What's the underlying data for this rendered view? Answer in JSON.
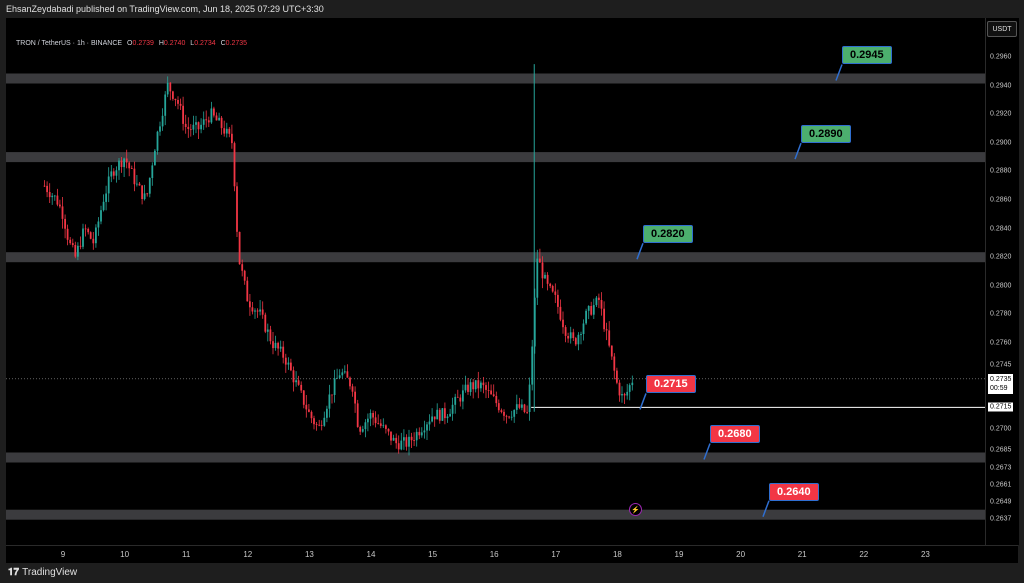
{
  "header": {
    "publish_line": "EhsanZeydabadi published on TradingView.com, Jun 18, 2025 07:29 UTC+3:30"
  },
  "symbol": {
    "name": "TRON / TetherUS · 1h · BINANCE",
    "open_label": "O",
    "open": "0.2739",
    "high_label": "H",
    "high": "0.2740",
    "low_label": "L",
    "low": "0.2734",
    "close_label": "C",
    "close": "0.2735"
  },
  "currency_button": "USDT",
  "last_price": {
    "value": "0.2735",
    "countdown": "00:59"
  },
  "footer": {
    "brand": "TradingView"
  },
  "colors": {
    "up": "#26a69a",
    "down": "#f23645",
    "zone": "#3b3b3e",
    "callout_green": "#4caf6e",
    "callout_red": "#f23645",
    "callout_border": "#2f6fd1"
  },
  "chart_data": {
    "type": "candlestick",
    "price_axis_ticks": [
      0.296,
      0.294,
      0.292,
      0.29,
      0.288,
      0.286,
      0.284,
      0.282,
      0.28,
      0.278,
      0.276,
      0.2745,
      0.2735,
      0.2715,
      0.27,
      0.2685,
      0.2673,
      0.2661,
      0.2649,
      0.2637
    ],
    "price_axis_tick_labels": [
      "0.2960",
      "0.2940",
      "0.2920",
      "0.2900",
      "0.2880",
      "0.2860",
      "0.2840",
      "0.2820",
      "0.2800",
      "0.2780",
      "0.2760",
      "0.2745",
      "0.2735",
      "0.2715",
      "0.2700",
      "0.2685",
      "0.2673",
      "0.2661",
      "0.2649",
      "0.2637"
    ],
    "time_axis_labels": [
      "9",
      "10",
      "11",
      "12",
      "13",
      "14",
      "15",
      "16",
      "17",
      "18",
      "19",
      "20",
      "21",
      "22",
      "23"
    ],
    "ylim": [
      0.2632,
      0.2985
    ],
    "zones": [
      {
        "level": 0.2945,
        "label": "0.2945",
        "color": "green"
      },
      {
        "level": 0.289,
        "label": "0.2890",
        "color": "green"
      },
      {
        "level": 0.282,
        "label": "0.2820",
        "color": "green"
      },
      {
        "level": 0.268,
        "label": "0.2680",
        "color": "red"
      },
      {
        "level": 0.264,
        "label": "0.2640",
        "color": "red"
      }
    ],
    "support_line": {
      "level": 0.2715,
      "label": "0.2715",
      "color": "red"
    },
    "price_path": [
      [
        8.7,
        0.287
      ],
      [
        8.9,
        0.286
      ],
      [
        9.0,
        0.285
      ],
      [
        9.1,
        0.283
      ],
      [
        9.2,
        0.282
      ],
      [
        9.35,
        0.284
      ],
      [
        9.5,
        0.283
      ],
      [
        9.65,
        0.286
      ],
      [
        9.8,
        0.288
      ],
      [
        10.0,
        0.289
      ],
      [
        10.2,
        0.287
      ],
      [
        10.35,
        0.286
      ],
      [
        10.5,
        0.29
      ],
      [
        10.7,
        0.294
      ],
      [
        10.85,
        0.293
      ],
      [
        11.0,
        0.291
      ],
      [
        11.2,
        0.291
      ],
      [
        11.4,
        0.292
      ],
      [
        11.6,
        0.291
      ],
      [
        11.75,
        0.29
      ],
      [
        11.85,
        0.282
      ],
      [
        12.0,
        0.279
      ],
      [
        12.2,
        0.278
      ],
      [
        12.4,
        0.276
      ],
      [
        12.6,
        0.275
      ],
      [
        12.8,
        0.273
      ],
      [
        13.0,
        0.271
      ],
      [
        13.15,
        0.27
      ],
      [
        13.3,
        0.272
      ],
      [
        13.5,
        0.274
      ],
      [
        13.7,
        0.273
      ],
      [
        13.8,
        0.27
      ],
      [
        14.0,
        0.271
      ],
      [
        14.2,
        0.27
      ],
      [
        14.4,
        0.269
      ],
      [
        14.6,
        0.269
      ],
      [
        14.8,
        0.27
      ],
      [
        15.0,
        0.271
      ],
      [
        15.2,
        0.271
      ],
      [
        15.4,
        0.272
      ],
      [
        15.6,
        0.273
      ],
      [
        15.8,
        0.273
      ],
      [
        16.0,
        0.272
      ],
      [
        16.2,
        0.271
      ],
      [
        16.4,
        0.2715
      ],
      [
        16.55,
        0.271
      ],
      [
        16.7,
        0.282
      ],
      [
        16.85,
        0.28
      ],
      [
        17.0,
        0.279
      ],
      [
        17.15,
        0.277
      ],
      [
        17.3,
        0.276
      ],
      [
        17.5,
        0.278
      ],
      [
        17.7,
        0.279
      ],
      [
        17.85,
        0.276
      ],
      [
        18.0,
        0.273
      ],
      [
        18.1,
        0.272
      ],
      [
        18.25,
        0.2735
      ]
    ]
  }
}
